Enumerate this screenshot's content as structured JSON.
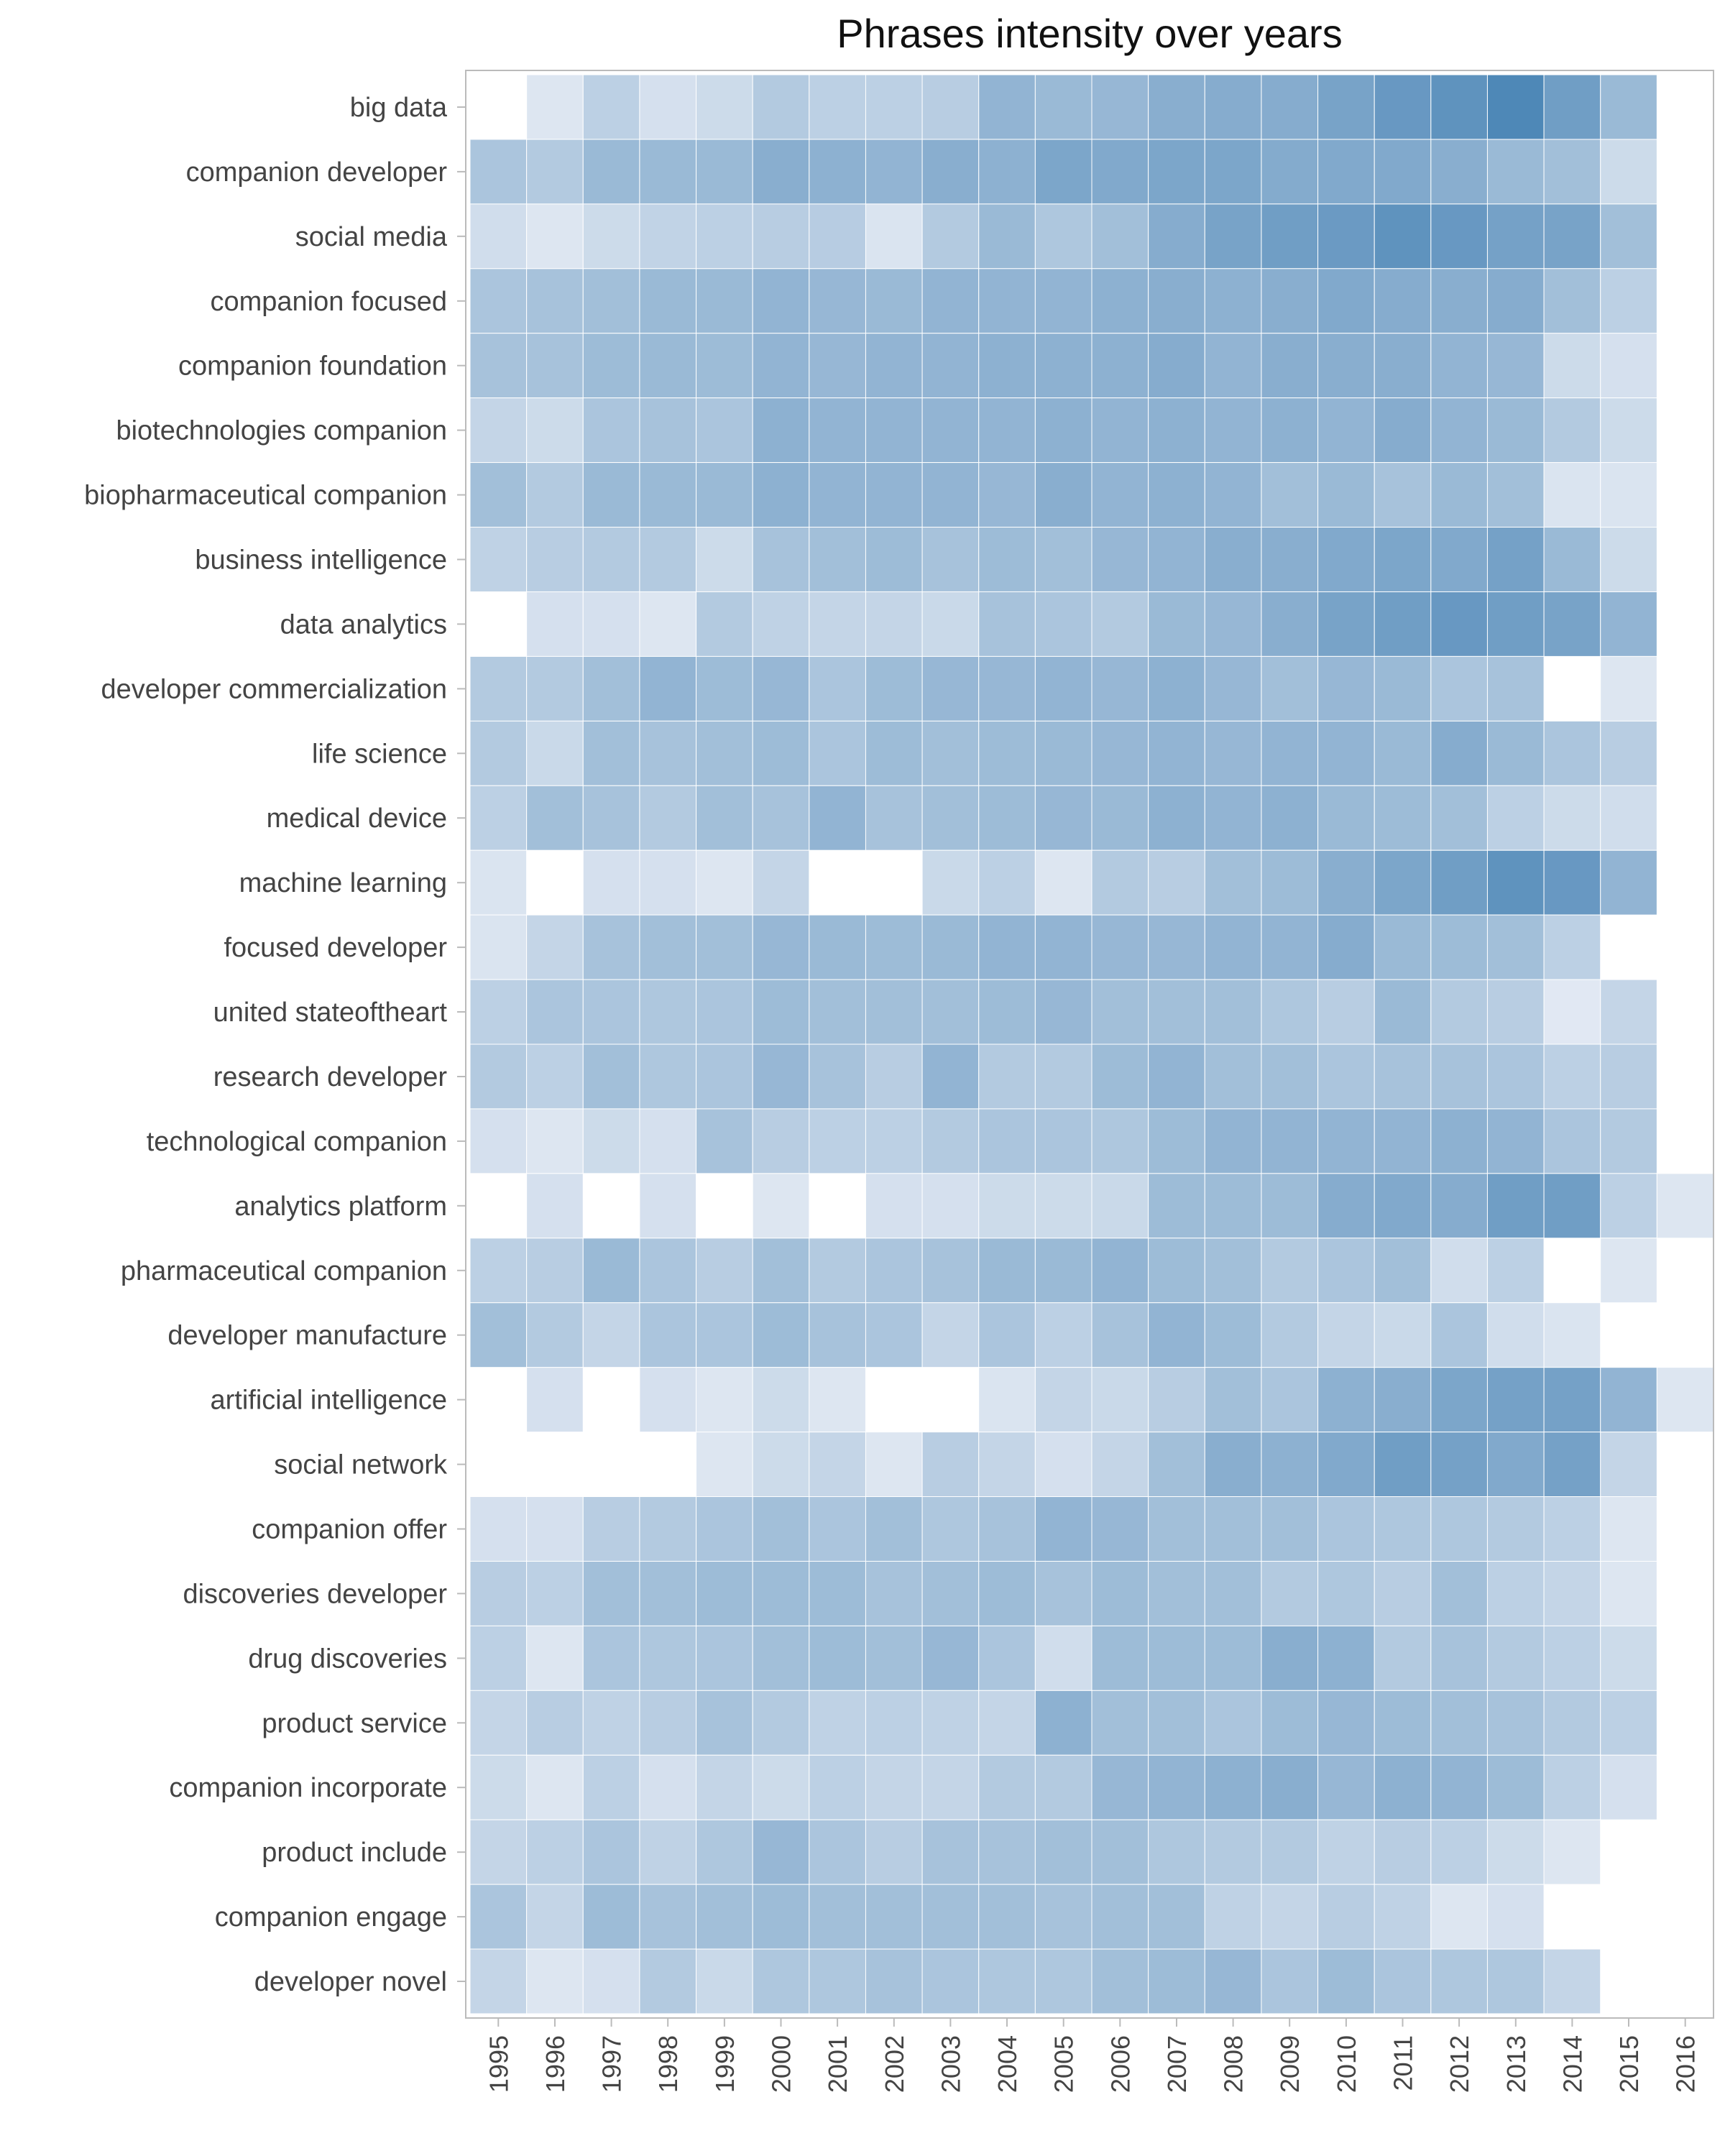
{
  "chart_data": {
    "type": "heatmap",
    "title": "Phrases intensity over years",
    "xlabel": "",
    "ylabel": "",
    "x": [
      "1995",
      "1996",
      "1997",
      "1998",
      "1999",
      "2000",
      "2001",
      "2002",
      "2003",
      "2004",
      "2005",
      "2006",
      "2007",
      "2008",
      "2009",
      "2010",
      "2011",
      "2012",
      "2013",
      "2014",
      "2015",
      "2016"
    ],
    "y": [
      "big data",
      "companion developer",
      "social media",
      "companion focused",
      "companion foundation",
      "biotechnologies companion",
      "biopharmaceutical companion",
      "business intelligence",
      "data analytics",
      "developer commercialization",
      "life science",
      "medical device",
      "machine learning",
      "focused developer",
      "united stateoftheart",
      "research developer",
      "technological companion",
      "analytics platform",
      "pharmaceutical companion",
      "developer manufacture",
      "artificial intelligence",
      "social network",
      "companion offer",
      "discoveries developer",
      "drug discoveries",
      "product service",
      "companion incorporate",
      "product include",
      "companion engage",
      "developer novel"
    ],
    "intensity_scale": [
      0,
      1
    ],
    "colors": {
      "high": "#4682b4",
      "low": "#eef1f8",
      "missing": "#ffffff",
      "grid": "#ffffff",
      "frame": "#bbbbbb"
    },
    "values": [
      [
        null,
        0.1,
        0.3,
        0.15,
        0.2,
        0.35,
        0.3,
        0.3,
        0.32,
        0.55,
        0.5,
        0.52,
        0.6,
        0.62,
        0.62,
        0.7,
        0.8,
        0.85,
        0.95,
        0.75,
        0.5,
        null
      ],
      [
        0.4,
        0.35,
        0.5,
        0.5,
        0.5,
        0.6,
        0.58,
        0.55,
        0.6,
        0.58,
        0.68,
        0.65,
        0.68,
        0.68,
        0.63,
        0.65,
        0.65,
        0.6,
        0.5,
        0.45,
        0.2,
        null
      ],
      [
        0.18,
        0.1,
        0.2,
        0.27,
        0.3,
        0.32,
        0.33,
        0.12,
        0.35,
        0.5,
        0.38,
        0.45,
        0.62,
        0.7,
        0.75,
        0.78,
        0.85,
        0.8,
        0.72,
        0.7,
        0.45,
        null
      ],
      [
        0.4,
        0.42,
        0.45,
        0.5,
        0.5,
        0.55,
        0.52,
        0.5,
        0.55,
        0.55,
        0.55,
        0.58,
        0.6,
        0.58,
        0.6,
        0.65,
        0.62,
        0.6,
        0.62,
        0.45,
        0.3,
        null
      ],
      [
        0.42,
        0.42,
        0.48,
        0.5,
        0.48,
        0.55,
        0.52,
        0.55,
        0.55,
        0.58,
        0.58,
        0.58,
        0.62,
        0.55,
        0.6,
        0.6,
        0.6,
        0.55,
        0.52,
        0.2,
        0.15,
        null
      ],
      [
        0.25,
        0.2,
        0.4,
        0.42,
        0.4,
        0.58,
        0.55,
        0.55,
        0.55,
        0.55,
        0.58,
        0.55,
        0.58,
        0.55,
        0.58,
        0.55,
        0.62,
        0.55,
        0.5,
        0.35,
        0.2,
        null
      ],
      [
        0.45,
        0.35,
        0.5,
        0.5,
        0.5,
        0.58,
        0.55,
        0.55,
        0.55,
        0.52,
        0.6,
        0.55,
        0.58,
        0.55,
        0.45,
        0.5,
        0.42,
        0.5,
        0.45,
        0.12,
        0.12,
        null
      ],
      [
        0.28,
        0.32,
        0.35,
        0.35,
        0.2,
        0.42,
        0.45,
        0.48,
        0.42,
        0.48,
        0.45,
        0.52,
        0.55,
        0.6,
        0.6,
        0.65,
        0.68,
        0.65,
        0.72,
        0.5,
        0.2,
        null
      ],
      [
        null,
        0.15,
        0.15,
        0.1,
        0.35,
        0.28,
        0.25,
        0.25,
        0.22,
        0.42,
        0.4,
        0.35,
        0.5,
        0.52,
        0.6,
        0.7,
        0.75,
        0.8,
        0.75,
        0.7,
        0.55,
        null
      ],
      [
        0.35,
        0.35,
        0.45,
        0.55,
        0.48,
        0.52,
        0.4,
        0.48,
        0.52,
        0.52,
        0.55,
        0.52,
        0.58,
        0.52,
        0.45,
        0.52,
        0.5,
        0.4,
        0.42,
        null,
        0.1,
        null
      ],
      [
        0.35,
        0.22,
        0.45,
        0.42,
        0.45,
        0.48,
        0.4,
        0.48,
        0.45,
        0.48,
        0.5,
        0.52,
        0.55,
        0.52,
        0.55,
        0.55,
        0.5,
        0.62,
        0.5,
        0.4,
        0.32,
        null
      ],
      [
        0.3,
        0.45,
        0.42,
        0.35,
        0.45,
        0.42,
        0.55,
        0.42,
        0.45,
        0.48,
        0.52,
        0.5,
        0.58,
        0.55,
        0.58,
        0.5,
        0.48,
        0.45,
        0.3,
        0.2,
        0.18,
        null
      ],
      [
        0.12,
        null,
        0.15,
        0.15,
        0.1,
        0.25,
        null,
        null,
        0.22,
        0.3,
        0.1,
        0.35,
        0.32,
        0.45,
        0.48,
        0.6,
        0.68,
        0.75,
        0.85,
        0.8,
        0.55,
        null
      ],
      [
        0.12,
        0.25,
        0.42,
        0.45,
        0.45,
        0.52,
        0.5,
        0.48,
        0.5,
        0.55,
        0.55,
        0.52,
        0.52,
        0.55,
        0.55,
        0.62,
        0.5,
        0.48,
        0.45,
        0.3,
        null,
        null
      ],
      [
        0.3,
        0.4,
        0.4,
        0.38,
        0.4,
        0.48,
        0.45,
        0.45,
        0.45,
        0.48,
        0.52,
        0.45,
        0.45,
        0.45,
        0.38,
        0.32,
        0.5,
        0.35,
        0.32,
        0.08,
        0.25,
        null
      ],
      [
        0.35,
        0.3,
        0.45,
        0.38,
        0.4,
        0.52,
        0.42,
        0.32,
        0.55,
        0.35,
        0.35,
        0.48,
        0.55,
        0.45,
        0.45,
        0.4,
        0.42,
        0.42,
        0.4,
        0.3,
        0.32,
        null
      ],
      [
        0.15,
        0.1,
        0.2,
        0.15,
        0.42,
        0.32,
        0.3,
        0.3,
        0.35,
        0.4,
        0.4,
        0.38,
        0.48,
        0.55,
        0.55,
        0.55,
        0.55,
        0.58,
        0.55,
        0.4,
        0.35,
        null
      ],
      [
        null,
        0.15,
        null,
        0.15,
        null,
        0.1,
        null,
        0.15,
        0.15,
        0.2,
        0.2,
        0.22,
        0.48,
        0.48,
        0.48,
        0.62,
        0.65,
        0.62,
        0.75,
        0.75,
        0.3,
        0.1
      ],
      [
        0.3,
        0.32,
        0.5,
        0.4,
        0.32,
        0.45,
        0.35,
        0.4,
        0.42,
        0.5,
        0.5,
        0.55,
        0.48,
        0.45,
        0.35,
        0.4,
        0.45,
        0.18,
        0.3,
        null,
        0.1,
        null
      ],
      [
        0.45,
        0.35,
        0.25,
        0.4,
        0.4,
        0.48,
        0.42,
        0.4,
        0.25,
        0.4,
        0.3,
        0.42,
        0.55,
        0.48,
        0.35,
        0.25,
        0.22,
        0.4,
        0.18,
        0.12,
        null,
        null
      ],
      [
        null,
        0.15,
        null,
        0.15,
        0.1,
        0.2,
        0.1,
        null,
        null,
        0.12,
        0.25,
        0.22,
        0.32,
        0.45,
        0.4,
        0.58,
        0.6,
        0.68,
        0.72,
        0.72,
        0.55,
        0.1
      ],
      [
        null,
        null,
        null,
        null,
        0.1,
        0.2,
        0.25,
        0.1,
        0.32,
        0.25,
        0.15,
        0.25,
        0.45,
        0.6,
        0.58,
        0.65,
        0.75,
        0.72,
        0.65,
        0.72,
        0.25,
        null
      ],
      [
        0.15,
        0.15,
        0.32,
        0.35,
        0.4,
        0.45,
        0.4,
        0.45,
        0.38,
        0.42,
        0.55,
        0.52,
        0.45,
        0.45,
        0.45,
        0.4,
        0.38,
        0.38,
        0.35,
        0.3,
        0.1,
        null
      ],
      [
        0.32,
        0.3,
        0.45,
        0.45,
        0.48,
        0.48,
        0.48,
        0.42,
        0.45,
        0.48,
        0.42,
        0.48,
        0.45,
        0.45,
        0.35,
        0.38,
        0.32,
        0.45,
        0.3,
        0.25,
        0.1,
        null
      ],
      [
        0.3,
        0.1,
        0.4,
        0.38,
        0.4,
        0.45,
        0.48,
        0.45,
        0.52,
        0.4,
        0.18,
        0.48,
        0.48,
        0.48,
        0.6,
        0.58,
        0.35,
        0.42,
        0.35,
        0.3,
        0.2,
        null
      ],
      [
        0.25,
        0.32,
        0.28,
        0.32,
        0.42,
        0.35,
        0.28,
        0.3,
        0.28,
        0.25,
        0.58,
        0.45,
        0.45,
        0.4,
        0.48,
        0.52,
        0.48,
        0.45,
        0.42,
        0.35,
        0.3,
        null
      ],
      [
        0.2,
        0.1,
        0.3,
        0.15,
        0.25,
        0.2,
        0.3,
        0.25,
        0.25,
        0.35,
        0.35,
        0.52,
        0.55,
        0.58,
        0.6,
        0.52,
        0.58,
        0.55,
        0.48,
        0.3,
        0.15,
        null
      ],
      [
        0.25,
        0.3,
        0.4,
        0.28,
        0.38,
        0.52,
        0.4,
        0.32,
        0.42,
        0.42,
        0.45,
        0.45,
        0.38,
        0.35,
        0.35,
        0.28,
        0.32,
        0.3,
        0.2,
        0.1,
        null,
        null
      ],
      [
        0.4,
        0.25,
        0.48,
        0.42,
        0.45,
        0.48,
        0.45,
        0.45,
        0.45,
        0.45,
        0.42,
        0.45,
        0.45,
        0.28,
        0.25,
        0.32,
        0.28,
        0.1,
        0.15,
        null,
        null,
        null
      ],
      [
        0.25,
        0.1,
        0.15,
        0.35,
        0.22,
        0.38,
        0.38,
        0.42,
        0.4,
        0.38,
        0.38,
        0.45,
        0.48,
        0.52,
        0.4,
        0.48,
        0.4,
        0.38,
        0.38,
        0.25,
        null,
        null
      ]
    ]
  }
}
